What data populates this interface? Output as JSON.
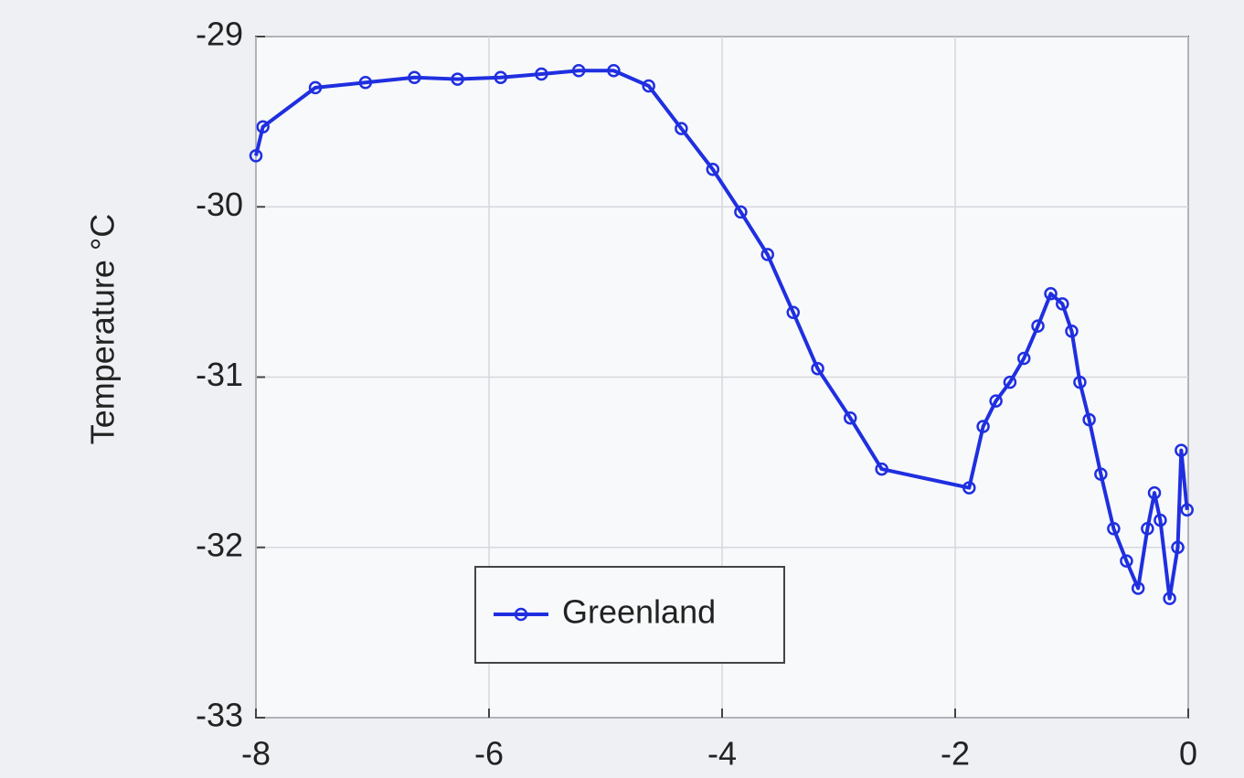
{
  "chart_data": {
    "type": "line",
    "ylabel": "Temperature °C",
    "x": [
      -8,
      -7.94,
      -7.49,
      -7.06,
      -6.64,
      -6.27,
      -5.9,
      -5.55,
      -5.23,
      -4.93,
      -4.63,
      -4.35,
      -4.08,
      -3.84,
      -3.61,
      -3.39,
      -3.18,
      -2.9,
      -2.63,
      -1.88,
      -1.76,
      -1.65,
      -1.53,
      -1.41,
      -1.29,
      -1.18,
      -1.08,
      -1.0,
      -0.93,
      -0.85,
      -0.75,
      -0.64,
      -0.53,
      -0.43,
      -0.35,
      -0.29,
      -0.24,
      -0.16,
      -0.09,
      -0.06,
      -0.01
    ],
    "series": [
      {
        "name": "Greenland",
        "color": "#1f2fe0",
        "values": [
          -29.7,
          -29.53,
          -29.3,
          -29.27,
          -29.24,
          -29.25,
          -29.24,
          -29.22,
          -29.2,
          -29.2,
          -29.29,
          -29.54,
          -29.78,
          -30.03,
          -30.28,
          -30.62,
          -30.95,
          -31.24,
          -31.54,
          -31.65,
          -31.29,
          -31.14,
          -31.03,
          -30.89,
          -30.7,
          -30.51,
          -30.57,
          -30.73,
          -31.03,
          -31.25,
          -31.57,
          -31.89,
          -32.08,
          -32.24,
          -31.89,
          -31.68,
          -31.84,
          -32.3,
          -32.0,
          -31.43,
          -31.78
        ]
      }
    ],
    "xlim": [
      -8,
      0
    ],
    "xticks": [
      -8,
      -6,
      -4,
      -2,
      0
    ],
    "ylim": [
      -33,
      -29
    ],
    "yticks": [
      -33,
      -32,
      -31,
      -30,
      -29
    ],
    "grid": true
  }
}
